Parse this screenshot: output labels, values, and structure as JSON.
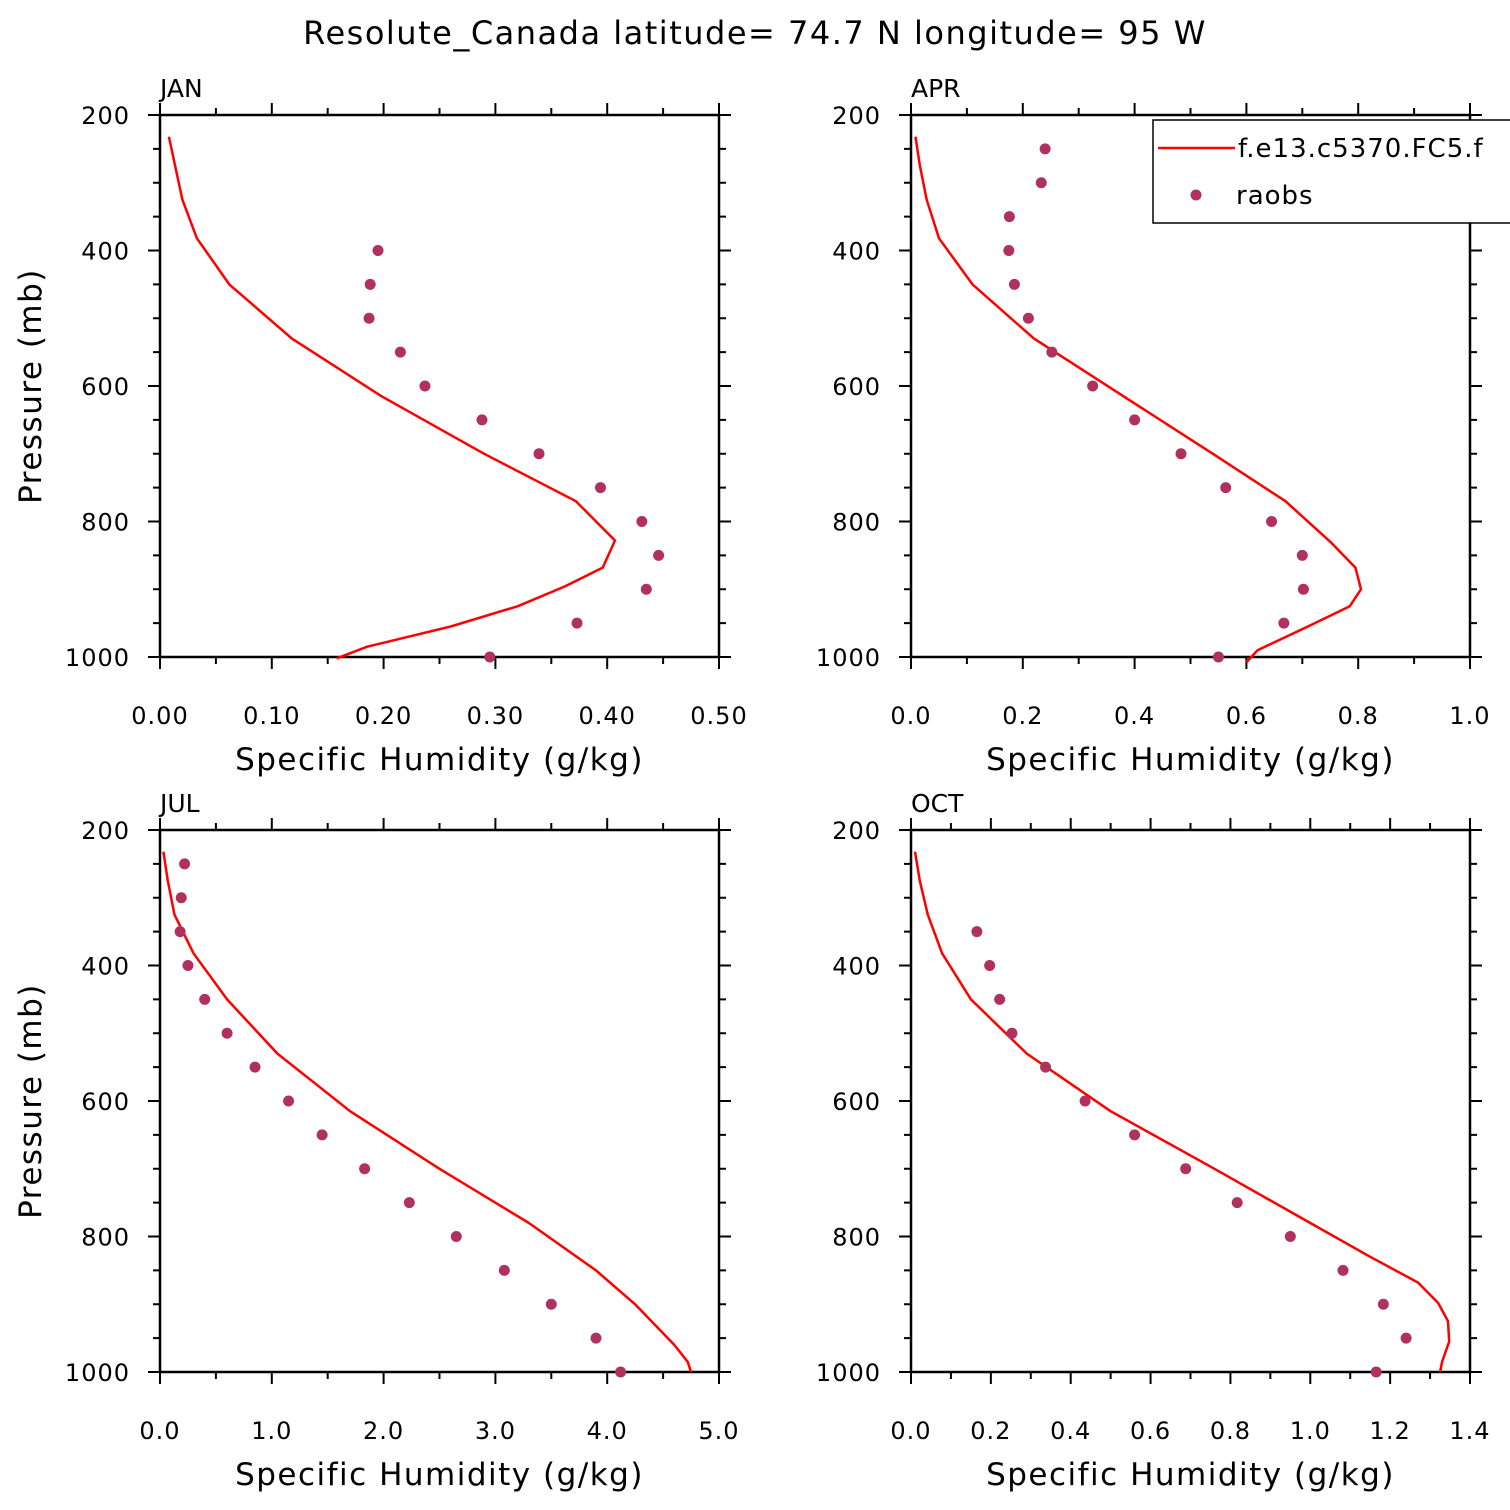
{
  "title": "Resolute_Canada  latitude= 74.7 N longitude= 95 W",
  "legend": {
    "model_label": "f.e13.c5370.FC5.f",
    "obs_label": "raobs",
    "model_color": "#ff0000",
    "obs_color": "#b03060"
  },
  "chart_data": [
    {
      "type": "line",
      "panel": "JAN",
      "xlabel": "Specific Humidity (g/kg)",
      "ylabel": "Pressure (mb)",
      "xlim": [
        0,
        0.5
      ],
      "ylim": [
        1000,
        200
      ],
      "xticks": [
        "0.00",
        "0.10",
        "0.20",
        "0.30",
        "0.40",
        "0.50"
      ],
      "yticks": [
        "200",
        "400",
        "600",
        "800",
        "1000"
      ],
      "series": [
        {
          "name": "f.e13.c5370.FC5.f",
          "style": "line",
          "x": [
            0.008,
            0.02,
            0.033,
            0.062,
            0.118,
            0.198,
            0.29,
            0.372,
            0.407,
            0.396,
            0.362,
            0.32,
            0.26,
            0.185,
            0.158
          ],
          "y": [
            232,
            325,
            382,
            450,
            530,
            615,
            700,
            770,
            828,
            868,
            896,
            925,
            955,
            985,
            1002
          ]
        },
        {
          "name": "raobs",
          "style": "dots",
          "x": [
            0.195,
            0.188,
            0.187,
            0.215,
            0.237,
            0.288,
            0.339,
            0.394,
            0.431,
            0.446,
            0.435,
            0.373,
            0.295
          ],
          "y": [
            400,
            450,
            500,
            550,
            600,
            650,
            700,
            750,
            800,
            850,
            900,
            950,
            1000
          ]
        }
      ]
    },
    {
      "type": "line",
      "panel": "APR",
      "xlabel": "Specific Humidity (g/kg)",
      "ylabel": "",
      "xlim": [
        0,
        1.0
      ],
      "ylim": [
        1000,
        200
      ],
      "xticks": [
        "0.0",
        "0.2",
        "0.4",
        "0.6",
        "0.8",
        "1.0"
      ],
      "yticks": [
        "200",
        "400",
        "600",
        "800",
        "1000"
      ],
      "series": [
        {
          "name": "f.e13.c5370.FC5.f",
          "style": "line",
          "x": [
            0.008,
            0.016,
            0.028,
            0.05,
            0.11,
            0.22,
            0.38,
            0.54,
            0.67,
            0.75,
            0.795,
            0.805,
            0.785,
            0.71,
            0.62,
            0.6
          ],
          "y": [
            232,
            275,
            325,
            382,
            450,
            530,
            615,
            700,
            770,
            830,
            868,
            900,
            925,
            955,
            990,
            1008
          ]
        },
        {
          "name": "raobs",
          "style": "dots",
          "x": [
            0.24,
            0.233,
            0.176,
            0.175,
            0.185,
            0.21,
            0.252,
            0.325,
            0.4,
            0.483,
            0.563,
            0.645,
            0.7,
            0.702,
            0.667,
            0.55
          ],
          "y": [
            250,
            300,
            350,
            400,
            450,
            500,
            550,
            600,
            650,
            700,
            750,
            800,
            850,
            900,
            950,
            1000
          ]
        }
      ]
    },
    {
      "type": "line",
      "panel": "JUL",
      "xlabel": "Specific Humidity (g/kg)",
      "ylabel": "Pressure (mb)",
      "xlim": [
        0,
        5.0
      ],
      "ylim": [
        1000,
        200
      ],
      "xticks": [
        "0.0",
        "1.0",
        "2.0",
        "3.0",
        "4.0",
        "5.0"
      ],
      "yticks": [
        "200",
        "400",
        "600",
        "800",
        "1000"
      ],
      "series": [
        {
          "name": "f.e13.c5370.FC5.f",
          "style": "line",
          "x": [
            0.03,
            0.07,
            0.13,
            0.3,
            0.6,
            1.05,
            1.7,
            2.5,
            3.3,
            3.9,
            4.25,
            4.6,
            4.72,
            4.75
          ],
          "y": [
            232,
            275,
            325,
            382,
            450,
            530,
            615,
            700,
            780,
            850,
            900,
            960,
            985,
            1000
          ]
        },
        {
          "name": "raobs",
          "style": "dots",
          "x": [
            0.22,
            0.19,
            0.18,
            0.25,
            0.4,
            0.6,
            0.85,
            1.15,
            1.45,
            1.83,
            2.23,
            2.65,
            3.08,
            3.5,
            3.9,
            4.12
          ],
          "y": [
            250,
            300,
            350,
            400,
            450,
            500,
            550,
            600,
            650,
            700,
            750,
            800,
            850,
            900,
            950,
            1000
          ]
        }
      ]
    },
    {
      "type": "line",
      "panel": "OCT",
      "xlabel": "Specific Humidity (g/kg)",
      "ylabel": "",
      "xlim": [
        0,
        1.4
      ],
      "ylim": [
        1000,
        200
      ],
      "xticks": [
        "0.0",
        "0.2",
        "0.4",
        "0.6",
        "0.8",
        "1.0",
        "1.2",
        "1.4"
      ],
      "yticks": [
        "200",
        "400",
        "600",
        "800",
        "1000"
      ],
      "series": [
        {
          "name": "f.e13.c5370.FC5.f",
          "style": "line",
          "x": [
            0.01,
            0.022,
            0.042,
            0.078,
            0.15,
            0.29,
            0.5,
            0.76,
            1.0,
            1.15,
            1.27,
            1.32,
            1.345,
            1.348,
            1.33,
            1.325
          ],
          "y": [
            232,
            275,
            325,
            382,
            450,
            530,
            615,
            700,
            780,
            830,
            868,
            898,
            925,
            955,
            985,
            1000
          ]
        },
        {
          "name": "raobs",
          "style": "dots",
          "x": [
            0.165,
            0.197,
            0.222,
            0.253,
            0.337,
            0.436,
            0.56,
            0.688,
            0.817,
            0.95,
            1.082,
            1.183,
            1.24,
            1.165
          ],
          "y": [
            350,
            400,
            450,
            500,
            550,
            600,
            650,
            700,
            750,
            800,
            850,
            900,
            950,
            1000
          ]
        }
      ]
    }
  ]
}
